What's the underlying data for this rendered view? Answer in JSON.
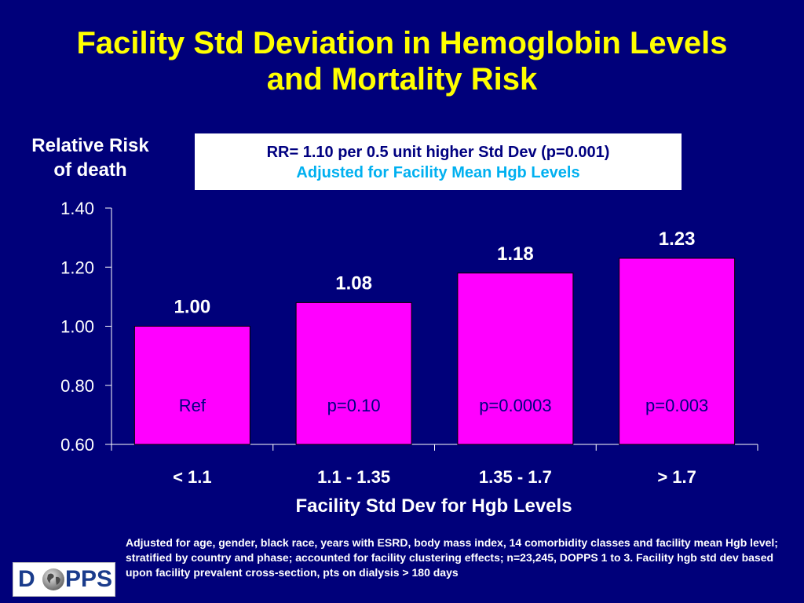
{
  "title_line1": "Facility Std Deviation in Hemoglobin Levels",
  "title_line2": "and Mortality Risk",
  "ylabel_line1": "Relative Risk",
  "ylabel_line2": "of death",
  "rr_box": {
    "line1": "RR= 1.10 per 0.5 unit higher Std Dev (p=0.001)",
    "line2": "Adjusted for Facility Mean Hgb Levels"
  },
  "colors": {
    "background": "#00007a",
    "title": "#ffff00",
    "bar": "#ff00ff",
    "bar_label": "#000080",
    "text": "#ffffff",
    "subtitle": "#00b0f0"
  },
  "chart_data": {
    "type": "bar",
    "categories": [
      "< 1.1",
      "1.1 - 1.35",
      "1.35 - 1.7",
      "> 1.7"
    ],
    "values": [
      1.0,
      1.08,
      1.18,
      1.23
    ],
    "value_labels": [
      "1.00",
      "1.08",
      "1.18",
      "1.23"
    ],
    "inner_labels": [
      "Ref",
      "p=0.10",
      "p=0.0003",
      "p=0.003"
    ],
    "xlabel": "Facility Std Dev for Hgb Levels",
    "ylabel": "Relative Risk of death",
    "ylim": [
      0.6,
      1.4
    ],
    "yticks": [
      0.6,
      0.8,
      1.0,
      1.2,
      1.4
    ],
    "ytick_labels": [
      "0.60",
      "0.80",
      "1.00",
      "1.20",
      "1.40"
    ],
    "grid": false,
    "legend": "none"
  },
  "footnote": "Adjusted for age, gender, black race, years with ESRD, body mass index, 14 comorbidity classes and facility mean Hgb level; stratified by country and phase; accounted for facility clustering effects; n=23,245, DOPPS 1 to 3.  Facility hgb std dev based upon facility prevalent cross-section, pts on dialysis > 180 days",
  "logo": {
    "left": "D",
    "right": "PPS",
    "icon": "globe-icon"
  }
}
